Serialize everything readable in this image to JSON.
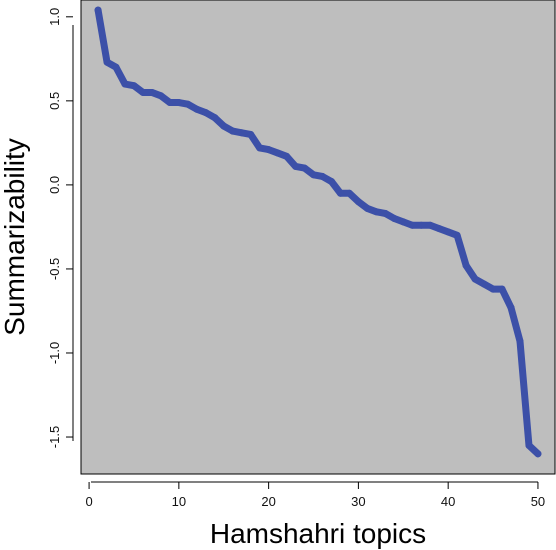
{
  "chart_data": {
    "type": "line",
    "title": "",
    "xlabel": "Hamshahri topics",
    "ylabel": "Summarizability",
    "xlim": [
      -0.9,
      51.9
    ],
    "ylim": [
      -1.72,
      1.1
    ],
    "x_ticks": [
      0,
      10,
      20,
      30,
      40,
      50
    ],
    "x_tick_labels": [
      "0",
      "10",
      "20",
      "30",
      "40",
      "50"
    ],
    "y_ticks": [
      -1.5,
      -1.0,
      -0.5,
      0.0,
      0.5,
      1.0
    ],
    "y_tick_labels": [
      "-1.5",
      "-1.0",
      "-0.5",
      "0.0",
      "0.5",
      "1.0"
    ],
    "grid": false,
    "legend": "none",
    "colors": {
      "plot_background": "#bebebe",
      "line": "#3c50a8",
      "frame": "#000000"
    },
    "series": [
      {
        "x": [
          1,
          2,
          3,
          4,
          5,
          6,
          7,
          8,
          9,
          10,
          11,
          12,
          13,
          14,
          15,
          16,
          17,
          18,
          19,
          20,
          21,
          22,
          23,
          24,
          25,
          26,
          27,
          28,
          29,
          30,
          31,
          32,
          33,
          34,
          35,
          36,
          37,
          38,
          39,
          40,
          41,
          42,
          43,
          44,
          45,
          46,
          47,
          48,
          49,
          50
        ],
        "values": [
          1.04,
          0.73,
          0.7,
          0.6,
          0.59,
          0.55,
          0.55,
          0.53,
          0.49,
          0.49,
          0.48,
          0.45,
          0.43,
          0.4,
          0.35,
          0.32,
          0.31,
          0.3,
          0.22,
          0.21,
          0.19,
          0.17,
          0.11,
          0.1,
          0.06,
          0.05,
          0.02,
          -0.05,
          -0.05,
          -0.1,
          -0.14,
          -0.16,
          -0.17,
          -0.2,
          -0.22,
          -0.24,
          -0.24,
          -0.24,
          -0.26,
          -0.28,
          -0.3,
          -0.48,
          -0.56,
          -0.59,
          -0.62,
          -0.62,
          -0.73,
          -0.93,
          -1.55,
          -1.6
        ]
      }
    ]
  }
}
